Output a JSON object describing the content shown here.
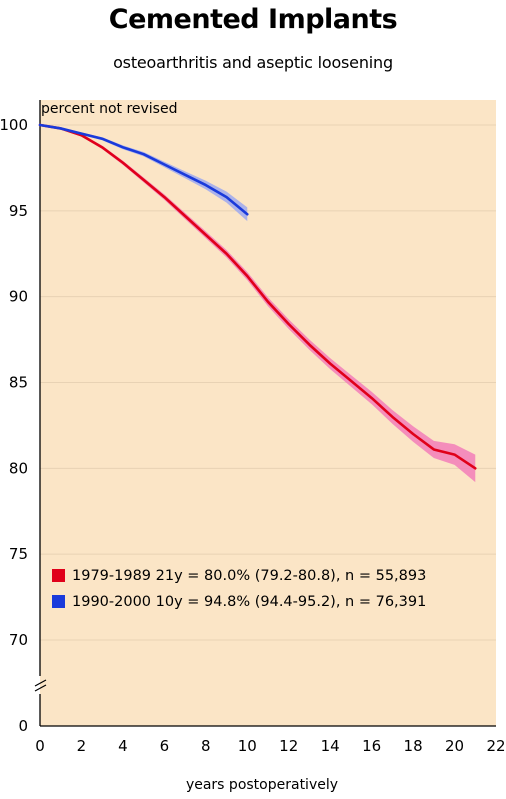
{
  "title": "Cemented Implants",
  "subtitle": "osteoarthritis and aseptic loosening",
  "colors": {
    "plot_background": "#FBE5C6",
    "gridline": "#E8D2B4",
    "series_1": "#E0001A",
    "series_1_band": "#F27EB8",
    "series_2": "#1A3ADB",
    "series_2_band": "#9DA9EE"
  },
  "chart_data": {
    "type": "line",
    "title": "Cemented Implants",
    "subtitle": "osteoarthritis and aseptic loosening",
    "xlabel": "years postoperatively",
    "ylabel": "percent not revised",
    "xlim": [
      0,
      22
    ],
    "ylim": [
      0,
      100
    ],
    "y_axis_break": true,
    "x_ticks": [
      0,
      2,
      4,
      6,
      8,
      10,
      12,
      14,
      16,
      18,
      20,
      22
    ],
    "x_tick_labels": [
      "0",
      "2",
      "4",
      "6",
      "8",
      "10",
      "12",
      "14",
      "16",
      "18",
      "20",
      "22"
    ],
    "y_ticks": [
      0,
      70,
      75,
      80,
      85,
      90,
      95,
      100
    ],
    "y_tick_labels": [
      "0",
      "70",
      "75",
      "80",
      "85",
      "90",
      "95",
      "100"
    ],
    "grid": "horizontal",
    "legend_position": "lower-left",
    "series": [
      {
        "name": "1979-1989",
        "label": "1979-1989   21y = 80.0% (79.2-80.8), n = 55,893",
        "x": [
          0,
          1,
          2,
          3,
          4,
          5,
          6,
          7,
          8,
          9,
          10,
          11,
          12,
          13,
          14,
          15,
          16,
          17,
          18,
          19,
          20,
          21
        ],
        "y": [
          100,
          99.8,
          99.4,
          98.7,
          97.8,
          96.8,
          95.8,
          94.7,
          93.6,
          92.5,
          91.2,
          89.7,
          88.4,
          87.2,
          86.1,
          85.1,
          84.1,
          83.0,
          82.0,
          81.1,
          80.8,
          80.0
        ],
        "ci_half_width": [
          0,
          0.05,
          0.08,
          0.1,
          0.12,
          0.14,
          0.16,
          0.18,
          0.2,
          0.22,
          0.24,
          0.26,
          0.28,
          0.3,
          0.32,
          0.34,
          0.36,
          0.4,
          0.45,
          0.5,
          0.6,
          0.8
        ]
      },
      {
        "name": "1990-2000",
        "label": "1990-2000   10y = 94.8% (94.4-95.2), n = 76,391",
        "x": [
          0,
          1,
          2,
          3,
          4,
          5,
          6,
          7,
          8,
          9,
          10
        ],
        "y": [
          100,
          99.8,
          99.5,
          99.2,
          98.7,
          98.3,
          97.7,
          97.1,
          96.5,
          95.8,
          94.8
        ],
        "ci_half_width": [
          0,
          0.05,
          0.07,
          0.09,
          0.11,
          0.13,
          0.16,
          0.2,
          0.25,
          0.32,
          0.4
        ]
      }
    ]
  }
}
